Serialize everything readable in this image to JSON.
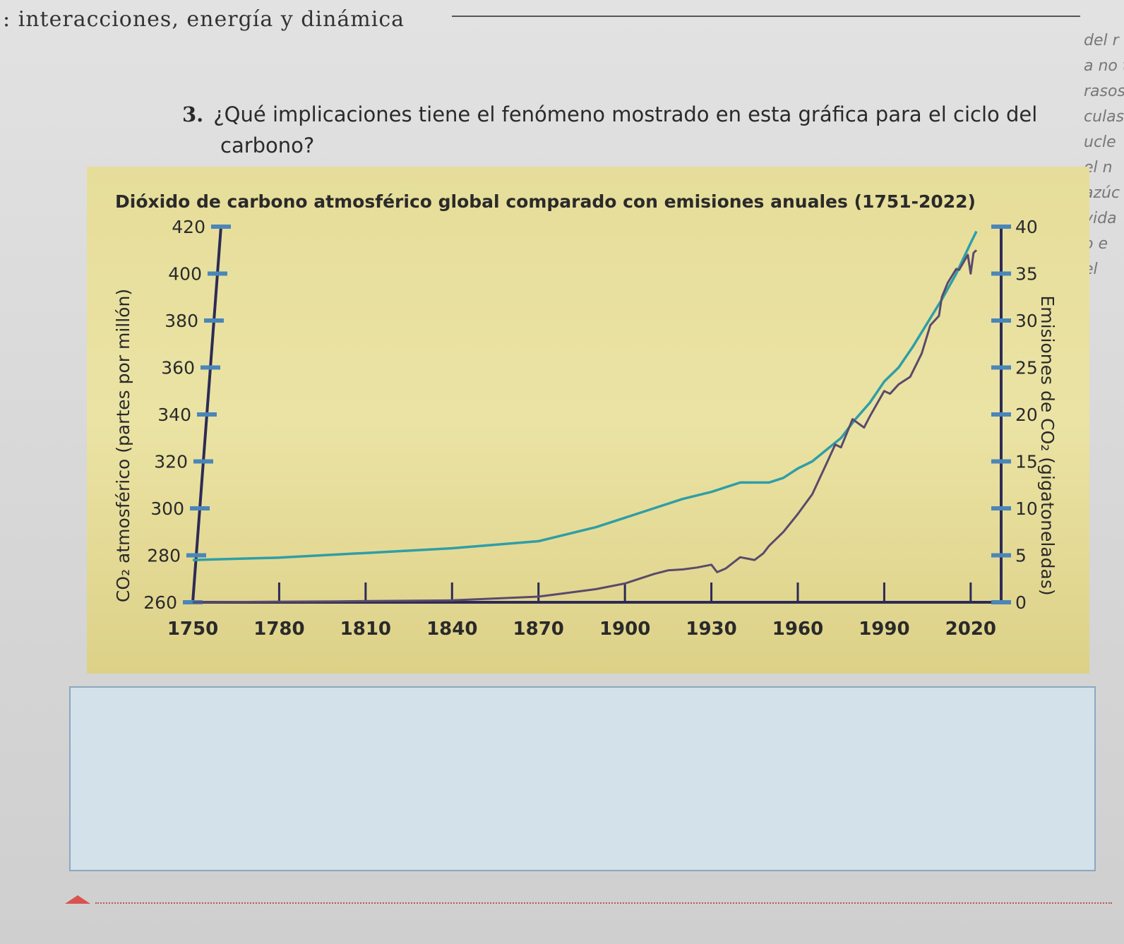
{
  "header": {
    "title": ": interacciones, energía y dinámica"
  },
  "edge_text": [
    "del r",
    "a no t",
    "rasos",
    "culas",
    "ucle",
    "el n",
    "azúc",
    "vida",
    "o e",
    "el"
  ],
  "question": {
    "number": "3.",
    "line1": "¿Qué implicaciones tiene el fenómeno mostrado en esta gráfica para el ciclo del",
    "line2": "carbono?"
  },
  "colors": {
    "panel": "#e8df9e",
    "axis": "#2d2b55",
    "tick_mark": "#4a86b8",
    "co2_series": "#2f9ea6",
    "emissions_series": "#5a4a6a",
    "answer_box": "#d3e1ea"
  },
  "chart_data": {
    "type": "line",
    "title": "Dióxido de carbono atmosférico global comparado con emisiones anuales (1751-2022)",
    "xlabel": "",
    "ylabel_left": "CO₂ atmosférico (partes por millón)",
    "ylabel_right": "Emisiones de CO₂ (gigatoneladas)",
    "xlim": [
      1750,
      2022
    ],
    "x_ticks": [
      1750,
      1780,
      1810,
      1840,
      1870,
      1900,
      1930,
      1960,
      1990,
      2020
    ],
    "y_left_lim": [
      260,
      420
    ],
    "y_left_ticks": [
      260,
      280,
      300,
      320,
      340,
      360,
      380,
      400,
      420
    ],
    "y_right_lim": [
      0,
      40
    ],
    "y_right_ticks": [
      0,
      5,
      10,
      15,
      20,
      25,
      30,
      35,
      40
    ],
    "grid": false,
    "series": [
      {
        "axis": "left",
        "points": [
          [
            1750,
            278
          ],
          [
            1780,
            279
          ],
          [
            1810,
            281
          ],
          [
            1840,
            283
          ],
          [
            1870,
            286
          ],
          [
            1890,
            292
          ],
          [
            1900,
            296
          ],
          [
            1910,
            300
          ],
          [
            1920,
            304
          ],
          [
            1930,
            307
          ],
          [
            1940,
            311
          ],
          [
            1950,
            311
          ],
          [
            1955,
            313
          ],
          [
            1960,
            317
          ],
          [
            1965,
            320
          ],
          [
            1970,
            325
          ],
          [
            1975,
            330
          ],
          [
            1980,
            338
          ],
          [
            1985,
            345
          ],
          [
            1990,
            354
          ],
          [
            1995,
            360
          ],
          [
            2000,
            369
          ],
          [
            2005,
            379
          ],
          [
            2010,
            389
          ],
          [
            2015,
            400
          ],
          [
            2020,
            413
          ],
          [
            2022,
            418
          ]
        ]
      },
      {
        "axis": "right",
        "points": [
          [
            1750,
            0
          ],
          [
            1800,
            0.1
          ],
          [
            1840,
            0.2
          ],
          [
            1870,
            0.6
          ],
          [
            1880,
            1.0
          ],
          [
            1890,
            1.4
          ],
          [
            1900,
            2.0
          ],
          [
            1910,
            3.0
          ],
          [
            1915,
            3.4
          ],
          [
            1920,
            3.5
          ],
          [
            1925,
            3.7
          ],
          [
            1930,
            4.0
          ],
          [
            1932,
            3.2
          ],
          [
            1935,
            3.6
          ],
          [
            1940,
            4.8
          ],
          [
            1945,
            4.5
          ],
          [
            1948,
            5.2
          ],
          [
            1950,
            6.0
          ],
          [
            1955,
            7.5
          ],
          [
            1960,
            9.4
          ],
          [
            1965,
            11.5
          ],
          [
            1970,
            14.8
          ],
          [
            1973,
            16.8
          ],
          [
            1975,
            16.5
          ],
          [
            1979,
            19.5
          ],
          [
            1983,
            18.6
          ],
          [
            1985,
            19.8
          ],
          [
            1990,
            22.5
          ],
          [
            1992,
            22.2
          ],
          [
            1995,
            23.2
          ],
          [
            1999,
            24.0
          ],
          [
            2003,
            26.5
          ],
          [
            2006,
            29.5
          ],
          [
            2009,
            30.5
          ],
          [
            2010,
            32.5
          ],
          [
            2012,
            34.0
          ],
          [
            2015,
            35.5
          ],
          [
            2016,
            35.4
          ],
          [
            2019,
            37.0
          ],
          [
            2020,
            35.0
          ],
          [
            2021,
            37.2
          ],
          [
            2022,
            37.5
          ]
        ]
      }
    ]
  }
}
